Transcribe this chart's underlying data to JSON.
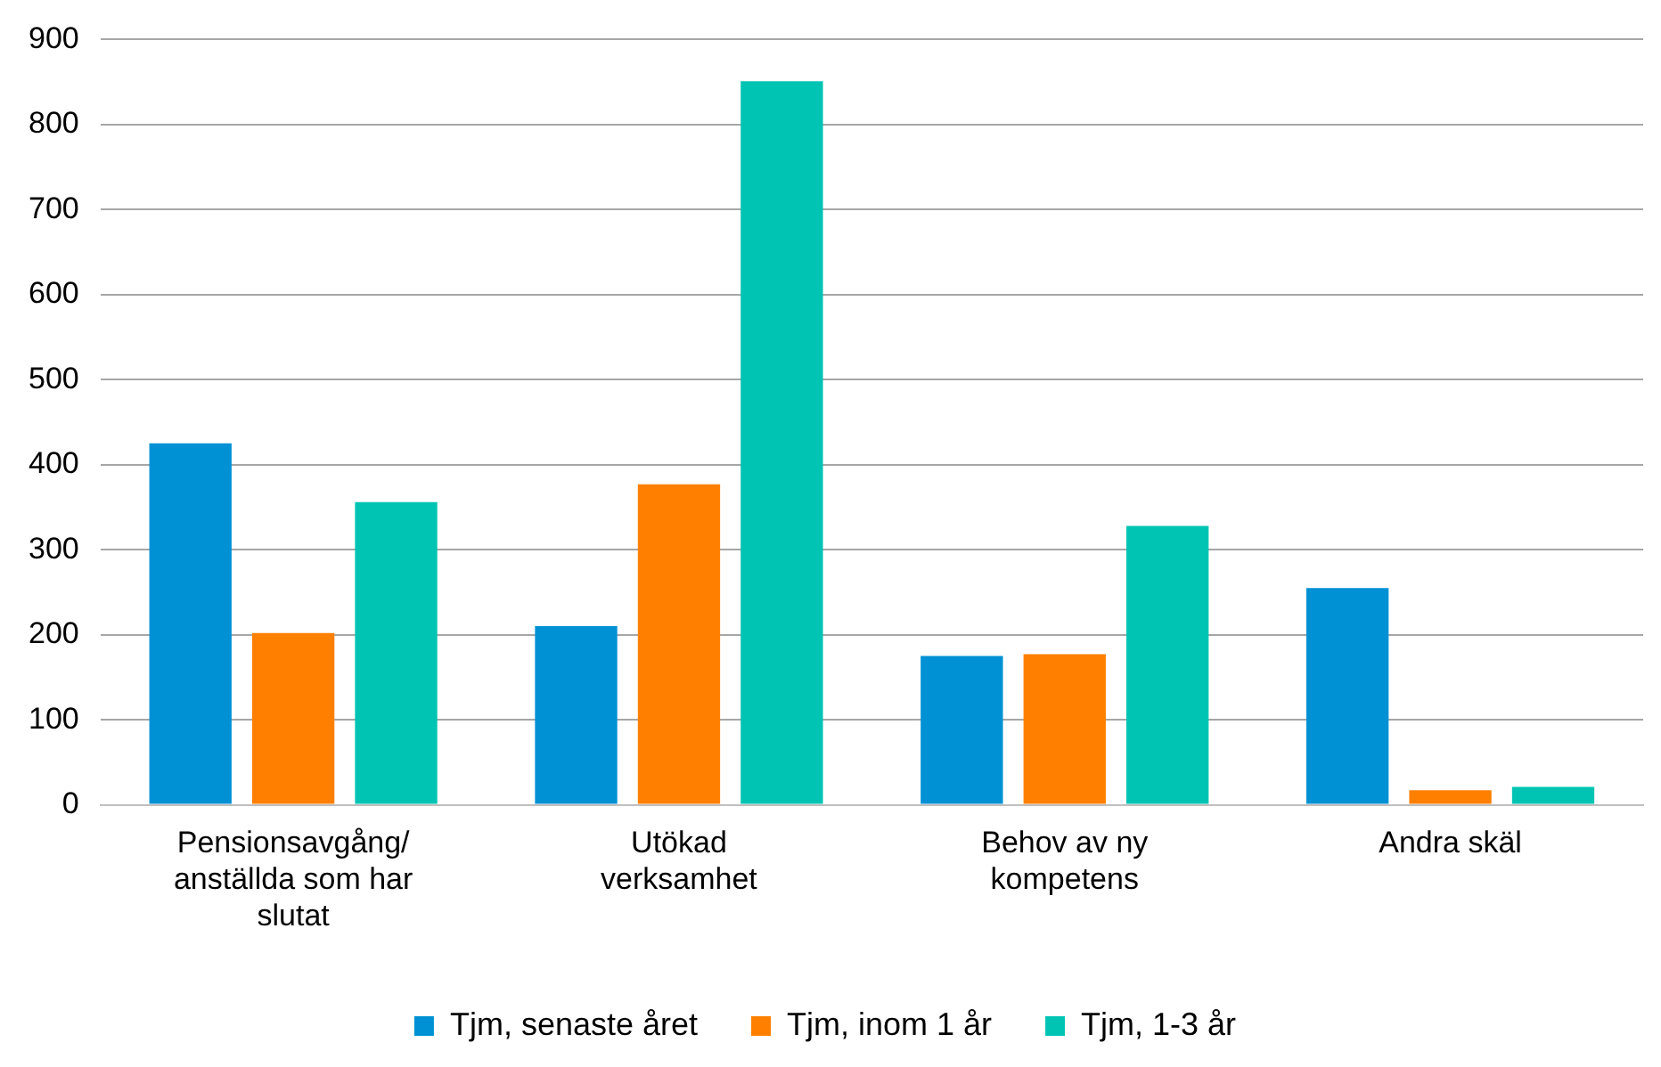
{
  "chart_data": {
    "type": "bar",
    "categories": [
      "Pensionsavgång/\nanställda som har\nslutat",
      "Utökad\nverksamhet",
      "Behov av ny\nkompetens",
      "Andra skäl"
    ],
    "series": [
      {
        "name": "Tjm, senaste året",
        "color": "#0091d5",
        "values": [
          425,
          210,
          175,
          255
        ]
      },
      {
        "name": "Tjm, inom 1 år",
        "color": "#ff8000",
        "values": [
          202,
          377,
          177,
          17
        ]
      },
      {
        "name": "Tjm, 1-3 år",
        "color": "#00c4b3",
        "values": [
          356,
          851,
          328,
          21
        ]
      }
    ],
    "ylim": [
      0,
      900
    ],
    "yticks": [
      0,
      100,
      200,
      300,
      400,
      500,
      600,
      700,
      800,
      900
    ],
    "grid": "y",
    "legend": "bottom"
  }
}
